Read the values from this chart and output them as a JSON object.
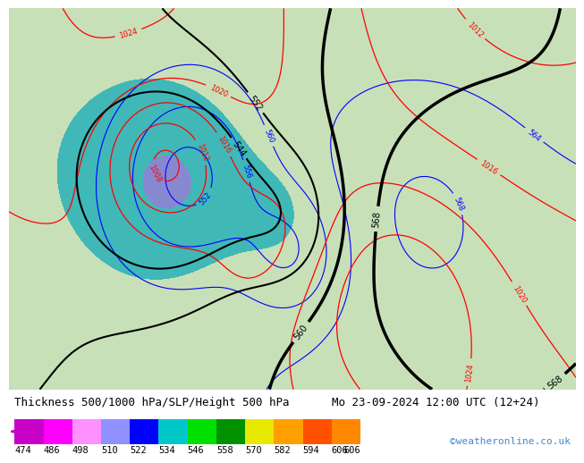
{
  "title_left": "Thickness 500/1000 hPa/SLP/Height 500 hPa",
  "title_right": "Mo 23-09-2024 12:00 UTC (12+24)",
  "watermark": "©weatheronline.co.uk",
  "colorbar_values": [
    474,
    486,
    498,
    510,
    522,
    534,
    546,
    558,
    570,
    582,
    594,
    606
  ],
  "colorbar_colors": [
    "#c800c8",
    "#ff00ff",
    "#ff90ff",
    "#9090ff",
    "#0000ff",
    "#00c8c8",
    "#00e000",
    "#009000",
    "#e8e800",
    "#ffa000",
    "#ff5000",
    "#ff8800"
  ],
  "bg_color": "#ffffff",
  "land_green": "#c8e0b8",
  "ocean_gray": "#c8c8c8",
  "title_fontsize": 9.0,
  "watermark_color": "#4488cc",
  "watermark_fontsize": 8,
  "colorbar_label_fontsize": 7.5
}
